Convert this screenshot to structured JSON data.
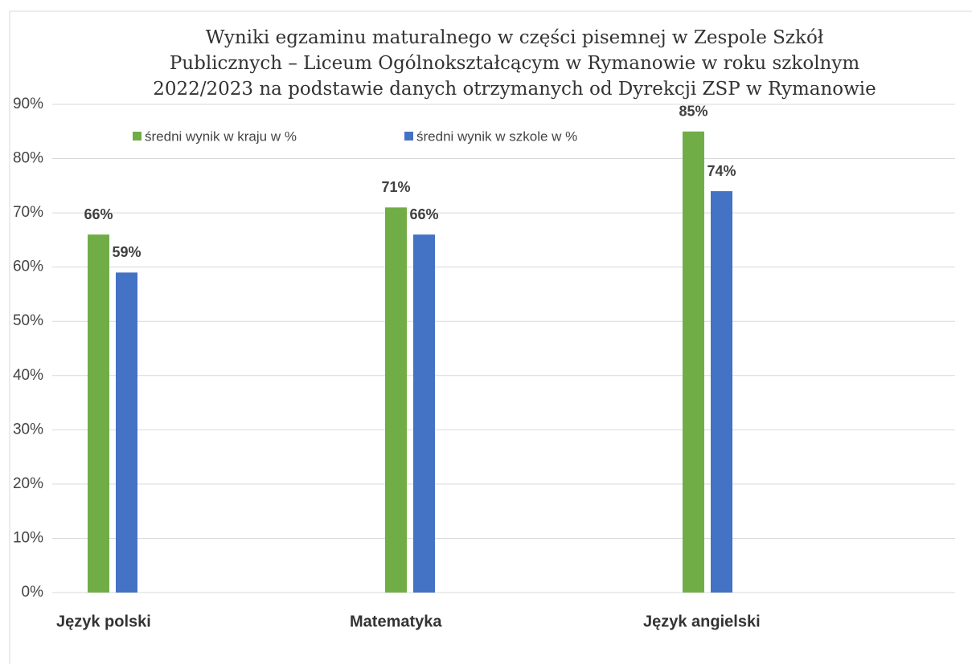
{
  "chart_data": {
    "type": "bar",
    "title_lines": [
      "Wyniki egzaminu maturalnego w części pisemnej w Zespole Szkół",
      "Publicznych – Liceum Ogólnokształcącym w Rymanowie w roku szkolnym",
      "2022/2023 na podstawie danych otrzymanych od Dyrekcji ZSP w Rymanowie"
    ],
    "categories": [
      "Język polski",
      "Matematyka",
      "Język angielski"
    ],
    "series": [
      {
        "name": "średni wynik w kraju w %",
        "color": "#70ad47",
        "values": [
          66,
          71,
          85
        ],
        "value_labels": [
          "66%",
          "71%",
          "85%"
        ]
      },
      {
        "name": "średni wynik w szkole w %",
        "color": "#4472c4",
        "values": [
          59,
          66,
          74
        ],
        "value_labels": [
          "59%",
          "66%",
          "74%"
        ]
      }
    ],
    "ylim": [
      0,
      90
    ],
    "yticks": [
      {
        "value": 0,
        "label": "0%"
      },
      {
        "value": 10,
        "label": "10%"
      },
      {
        "value": 20,
        "label": "20%"
      },
      {
        "value": 30,
        "label": "30%"
      },
      {
        "value": 40,
        "label": "40%"
      },
      {
        "value": 50,
        "label": "50%"
      },
      {
        "value": 60,
        "label": "60%"
      },
      {
        "value": 70,
        "label": "70%"
      },
      {
        "value": 80,
        "label": "80%"
      },
      {
        "value": 90,
        "label": "90%"
      }
    ],
    "grid": true,
    "legend": "top"
  }
}
